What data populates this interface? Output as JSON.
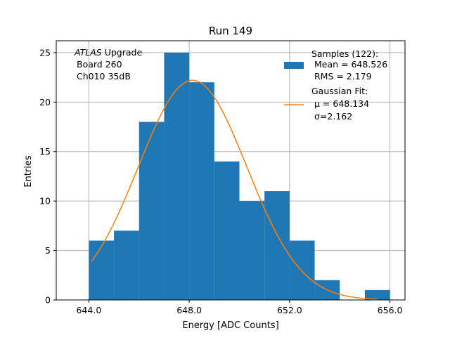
{
  "chart_data": {
    "type": "bar",
    "title": "Run 149",
    "xlabel": "Energy [ADC Counts]",
    "ylabel": "Entries",
    "xlim": [
      642.7,
      656.6
    ],
    "ylim": [
      0,
      26.2
    ],
    "xticks": [
      644,
      648,
      652,
      656
    ],
    "xtick_labels": [
      "644.0",
      "648.0",
      "652.0",
      "656.0"
    ],
    "yticks": [
      0,
      5,
      10,
      15,
      20,
      25
    ],
    "ytick_labels": [
      "0",
      "5",
      "10",
      "15",
      "20",
      "25"
    ],
    "grid": true,
    "bins": [
      {
        "x0": 644,
        "x1": 645,
        "value": 6
      },
      {
        "x0": 645,
        "x1": 646,
        "value": 7
      },
      {
        "x0": 646,
        "x1": 647,
        "value": 18
      },
      {
        "x0": 647,
        "x1": 648,
        "value": 25
      },
      {
        "x0": 648,
        "x1": 649,
        "value": 22
      },
      {
        "x0": 649,
        "x1": 650,
        "value": 14
      },
      {
        "x0": 650,
        "x1": 651,
        "value": 10
      },
      {
        "x0": 651,
        "x1": 652,
        "value": 11
      },
      {
        "x0": 652,
        "x1": 653,
        "value": 6
      },
      {
        "x0": 653,
        "x1": 654,
        "value": 2
      },
      {
        "x0": 654,
        "x1": 655,
        "value": 0
      },
      {
        "x0": 655,
        "x1": 656,
        "value": 1
      }
    ],
    "fit": {
      "mu": 648.134,
      "sigma": 2.162,
      "amplitude": 22.2,
      "x_range": [
        644.1,
        655.5
      ]
    },
    "colors": {
      "bars": "#1f77b4",
      "fit": "#ff7f0e",
      "grid": "#b0b0b0"
    },
    "annotation": {
      "line1_italic": "ATLAS",
      "line1_rest": " Upgrade",
      "line2": "Board 260",
      "line3": "Ch010 35dB"
    },
    "legend": {
      "placement": "upper right",
      "samples_lines": [
        "Samples (122):",
        " Mean = 648.526",
        " RMS = 2.179"
      ],
      "fit_lines": [
        "Gaussian Fit:",
        "$\\mu$ = 648.134",
        "$\\sigma$=2.162"
      ],
      "fit_mu_label": "μ = 648.134",
      "fit_sigma_label": "σ=2.162"
    }
  }
}
